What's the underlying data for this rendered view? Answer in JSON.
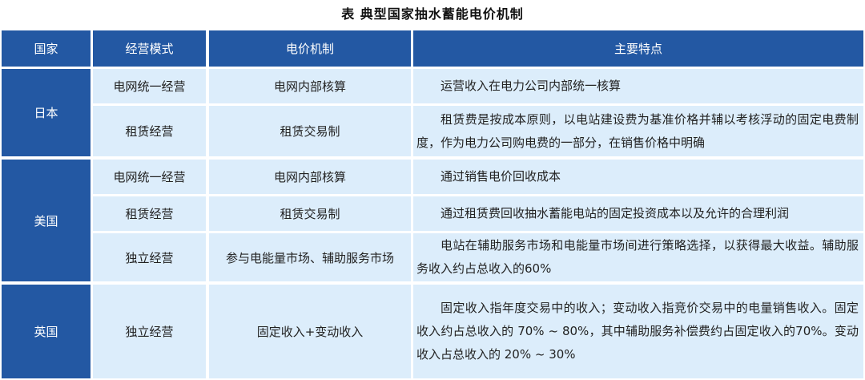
{
  "title": "表    典型国家抽水蓄能电价机制",
  "headers": [
    "国家",
    "经营模式",
    "电价机制",
    "主要特点"
  ],
  "colors": {
    "header_bg": "#2358a3",
    "cell_bg": "#dcedfb",
    "header_text": "#ffffff"
  },
  "groups": [
    {
      "country": "日本",
      "rows": [
        {
          "mode": "电网统一经营",
          "mechanism": "电网内部核算",
          "features": "运营收入在电力公司内部统一核算"
        },
        {
          "mode": "租赁经营",
          "mechanism": "租赁交易制",
          "features": "租赁费是按成本原则，以电站建设费为基准价格并辅以考核浮动的固定电费制度，作为电力公司购电费的一部分，在销售价格中明确"
        }
      ]
    },
    {
      "country": "美国",
      "rows": [
        {
          "mode": "电网统一经营",
          "mechanism": "电网内部核算",
          "features": "通过销售电价回收成本"
        },
        {
          "mode": "租赁经营",
          "mechanism": "租赁交易制",
          "features": "通过租赁费回收抽水蓄能电站的固定投资成本以及允许的合理利润"
        },
        {
          "mode": "独立经营",
          "mechanism": "参与电能量市场、辅助服务市场",
          "features": "电站在辅助服务市场和电能量市场间进行策略选择，以获得最大收益。辅助服务收入约占总收入的60%"
        }
      ]
    },
    {
      "country": "英国",
      "rows": [
        {
          "mode": "独立经营",
          "mechanism": "固定收入+变动收入",
          "features": "固定收入指年度交易中的收入；变动收入指竞价交易中的电量销售收入。固定收入约占总收入的 70% ~ 80%，其中辅助服务补偿费约占固定收入的70%。变动收入占总收入的 20% ~ 30%"
        }
      ]
    }
  ]
}
